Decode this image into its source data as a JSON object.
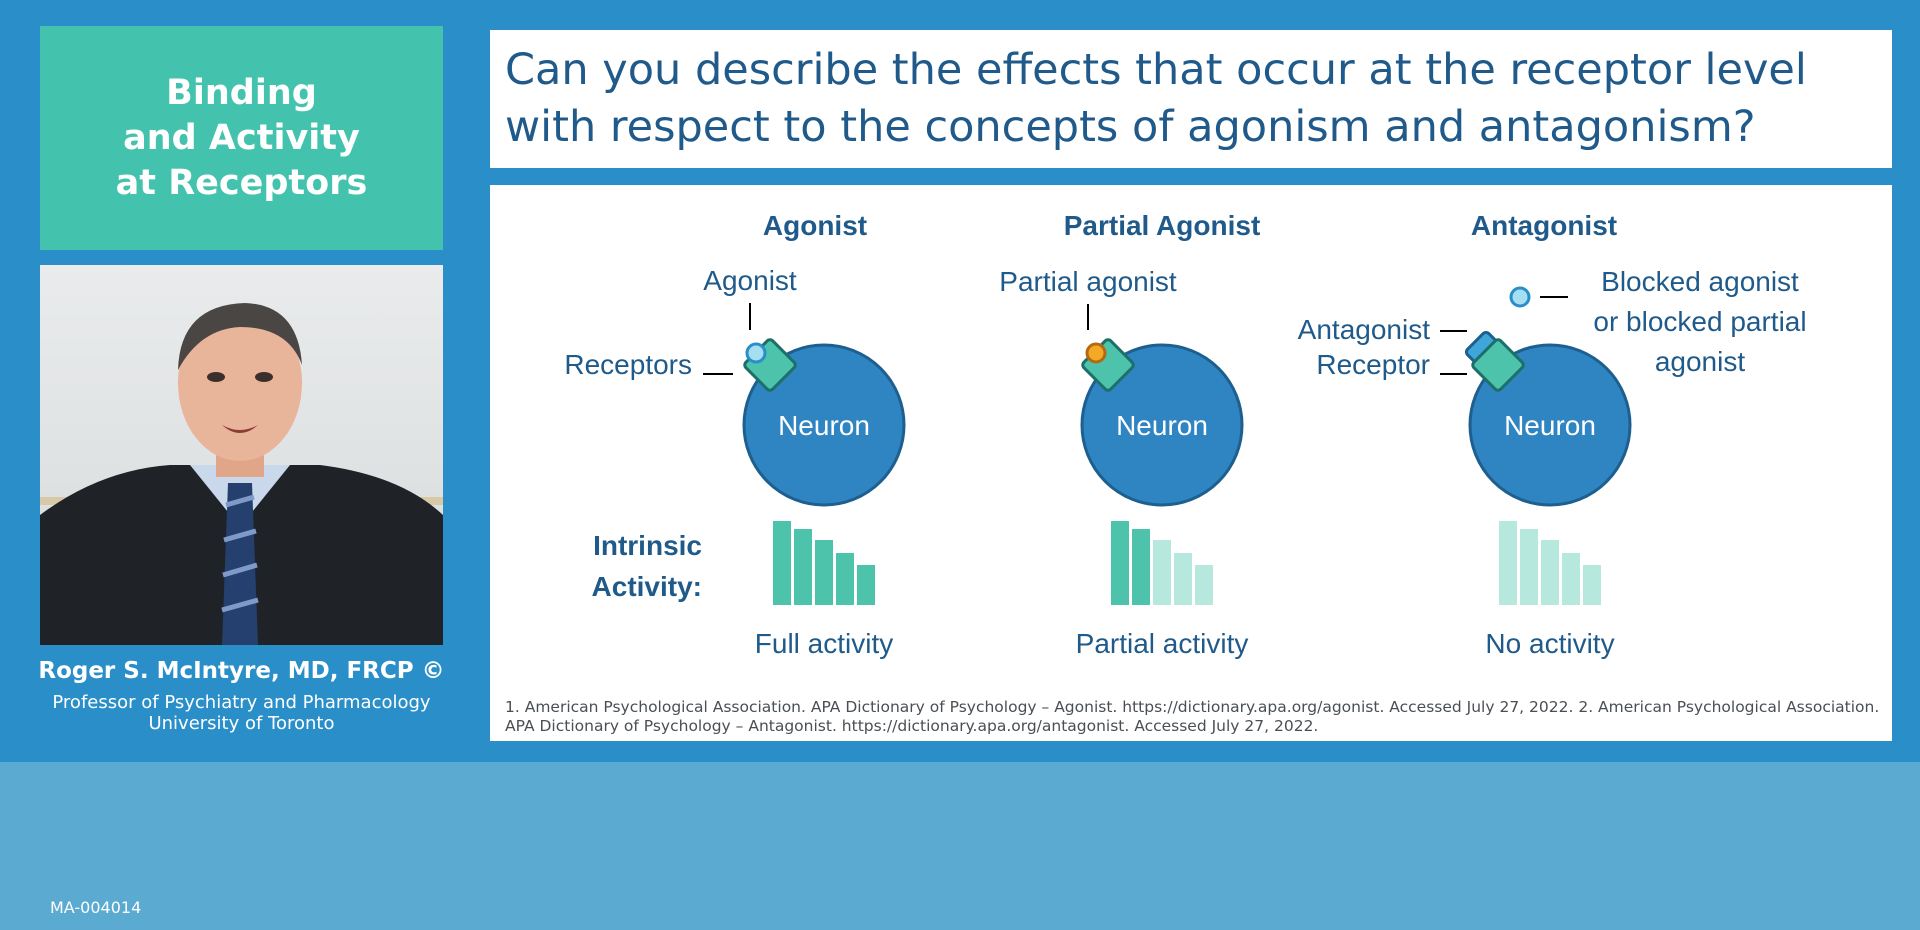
{
  "sidebar": {
    "title": "Binding\nand Activity\nat Receptors",
    "presenter_name": "Roger S. McIntyre, MD, FRCP ©",
    "presenter_role": "Professor of Psychiatry and Pharmacology",
    "presenter_org": "University of Toronto"
  },
  "question": "Can you describe the effects that occur at the receptor level with respect to the concepts of agonism and antagonism?",
  "diagram": {
    "intrinsic_label_1": "Intrinsic",
    "intrinsic_label_2": "Activity:",
    "agonist": {
      "heading": "Agonist",
      "label_agonist": "Agonist",
      "label_receptors": "Receptors",
      "neuron": "Neuron",
      "activity": "Full activity",
      "filled_bars": 5
    },
    "partial": {
      "heading": "Partial Agonist",
      "label_partial": "Partial agonist",
      "neuron": "Neuron",
      "activity": "Partial activity",
      "filled_bars": 2
    },
    "antagonist": {
      "heading": "Antagonist",
      "label_antagonist": "Antagonist",
      "label_receptor": "Receptor",
      "label_blocked_1": "Blocked agonist",
      "label_blocked_2": "or blocked partial",
      "label_blocked_3": "agonist",
      "neuron": "Neuron",
      "activity": "No activity",
      "filled_bars": 0
    }
  },
  "references": "1. American Psychological Association.  APA Dictionary of Psychology – Agonist. https://dictionary.apa.org/agonist. Accessed July 27, 2022. 2. American Psychological Association.  APA Dictionary of Psychology – Antagonist. https://dictionary.apa.org/antagonist. Accessed July 27, 2022.",
  "footer_code": "MA-004014",
  "colors": {
    "background": "#2a8fc9",
    "teal": "#43c3ad",
    "title_blue": "#1f5a8a",
    "neuron": "#2f84c2",
    "bar_full": "#4cc3aa",
    "bar_faded": "#b7e8dd",
    "agonist_dot": "#a6dff2",
    "partial_dot": "#f4a926"
  }
}
